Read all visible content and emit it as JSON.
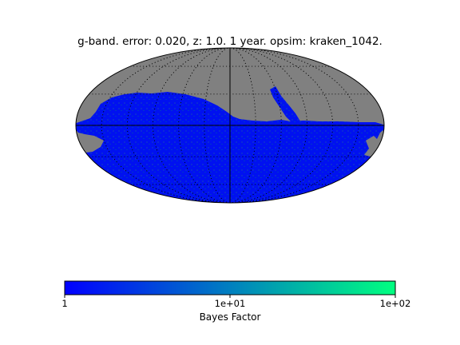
{
  "chart_data": {
    "type": "heatmap",
    "projection": "mollweide",
    "title": "g-band. error: 0.020, z: 1.0. 1 year. opsim: kraken_1042.",
    "colorbar": {
      "label": "Bayes Factor",
      "scale": "log",
      "range": [
        1,
        100
      ],
      "ticks": [
        "1",
        "1e+01",
        "1e+02"
      ],
      "colormap": [
        "#0000ff",
        "#00ff80"
      ]
    },
    "sky_map": {
      "unobserved_color": "#808080",
      "dominant_value": 1,
      "graticule": "dotted",
      "observed_region": "southern sky below the equator, plus a narrow strip extending north near the right side"
    }
  }
}
